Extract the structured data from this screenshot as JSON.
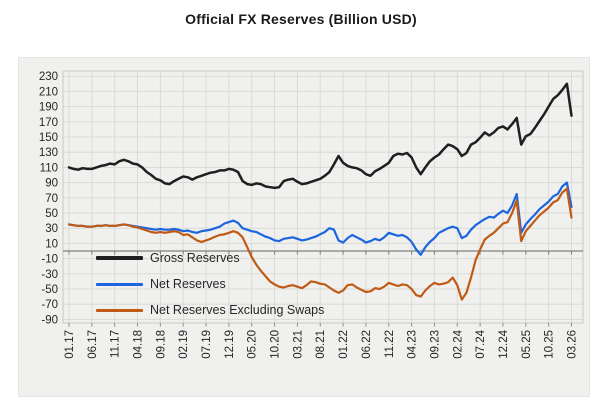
{
  "title": "Official FX Reserves (Billion USD)",
  "colors": {
    "figure_bg": "#f0f0ee",
    "gridline": "#dadad8",
    "plot_border": "#c9c9c7",
    "zero_line": "#7f7f7f",
    "tick_mark": "#8c8c8c",
    "axis_text": "#262626",
    "title_text": "#1a1a1a"
  },
  "chart_data": {
    "type": "line",
    "title": "Official FX Reserves (Billion USD)",
    "xlabel": "",
    "ylabel": "",
    "ylim": [
      -90,
      230
    ],
    "grid": true,
    "legend_position": "inside-bottom-left",
    "y_ticks": [
      230,
      210,
      190,
      170,
      150,
      130,
      110,
      90,
      70,
      50,
      30,
      10,
      -10,
      -30,
      -50,
      -70,
      -90
    ],
    "x_tick_labels": [
      "01.17",
      "06.17",
      "11.17",
      "04.18",
      "09.18",
      "02.19",
      "07.19",
      "12.19",
      "05.20",
      "10.20",
      "03.21",
      "08.21",
      "01.22",
      "06.22",
      "11.22",
      "04.23",
      "09.23",
      "02.24",
      "07.24",
      "12.24",
      "05.25",
      "10.25",
      "03.26"
    ],
    "x_unit": "month",
    "x_months_span": 111,
    "series": [
      {
        "name": "Gross Reserves",
        "color": "#1f1f1f",
        "width": 2.5,
        "values": [
          110,
          108,
          107,
          109,
          108,
          108,
          110,
          112,
          113,
          115,
          114,
          118,
          120,
          118,
          115,
          114,
          110,
          104,
          100,
          95,
          93,
          89,
          88,
          92,
          95,
          98,
          97,
          94,
          97,
          99,
          101,
          103,
          104,
          106,
          106,
          108,
          107,
          104,
          92,
          88,
          87,
          89,
          88,
          85,
          84,
          83,
          84,
          92,
          94,
          95,
          91,
          88,
          89,
          91,
          93,
          95,
          99,
          104,
          114,
          125,
          116,
          112,
          110,
          109,
          106,
          101,
          99,
          105,
          108,
          112,
          116,
          125,
          128,
          127,
          129,
          123,
          110,
          101,
          110,
          118,
          123,
          127,
          134,
          140,
          138,
          134,
          125,
          129,
          140,
          143,
          149,
          156,
          152,
          156,
          162,
          164,
          160,
          167,
          175,
          140,
          151,
          154,
          162,
          171,
          180,
          190,
          200,
          205,
          212,
          220,
          178
        ]
      },
      {
        "name": "Net Reserves",
        "color": "#1b66df",
        "width": 2.2,
        "values": [
          35,
          34,
          33,
          33,
          32,
          32,
          33,
          33,
          34,
          33,
          33,
          34,
          35,
          34,
          33,
          32,
          31,
          30,
          29,
          28,
          29,
          28,
          28,
          29,
          28,
          26,
          27,
          25,
          24,
          26,
          27,
          28,
          30,
          32,
          36,
          38,
          40,
          37,
          30,
          28,
          26,
          25,
          22,
          19,
          17,
          14,
          13,
          16,
          17,
          18,
          16,
          14,
          15,
          17,
          19,
          22,
          25,
          30,
          28,
          14,
          11,
          17,
          21,
          18,
          15,
          11,
          13,
          16,
          14,
          18,
          24,
          22,
          20,
          21,
          18,
          12,
          2,
          -5,
          5,
          12,
          17,
          24,
          27,
          30,
          32,
          30,
          17,
          20,
          28,
          34,
          38,
          42,
          45,
          44,
          49,
          53,
          50,
          60,
          75,
          24,
          35,
          42,
          48,
          55,
          60,
          65,
          72,
          75,
          85,
          90,
          58
        ]
      },
      {
        "name": "Net Reserves Excluding Swaps",
        "color": "#c05a15",
        "width": 2.2,
        "values": [
          35,
          34,
          33,
          33,
          32,
          32,
          33,
          33,
          34,
          33,
          33,
          34,
          35,
          34,
          32,
          31,
          29,
          27,
          25,
          24,
          25,
          24,
          25,
          26,
          25,
          21,
          22,
          18,
          14,
          12,
          14,
          16,
          19,
          21,
          22,
          24,
          26,
          24,
          18,
          5,
          -8,
          -18,
          -26,
          -33,
          -40,
          -44,
          -47,
          -48,
          -46,
          -45,
          -47,
          -49,
          -45,
          -40,
          -41,
          -43,
          -44,
          -48,
          -52,
          -55,
          -52,
          -45,
          -44,
          -48,
          -51,
          -54,
          -53,
          -49,
          -50,
          -47,
          -42,
          -44,
          -46,
          -44,
          -45,
          -50,
          -58,
          -60,
          -52,
          -46,
          -42,
          -44,
          -43,
          -41,
          -35,
          -45,
          -64,
          -55,
          -35,
          -12,
          2,
          15,
          20,
          24,
          30,
          36,
          38,
          50,
          66,
          13,
          26,
          33,
          40,
          47,
          52,
          57,
          64,
          67,
          77,
          82,
          44
        ]
      }
    ]
  }
}
